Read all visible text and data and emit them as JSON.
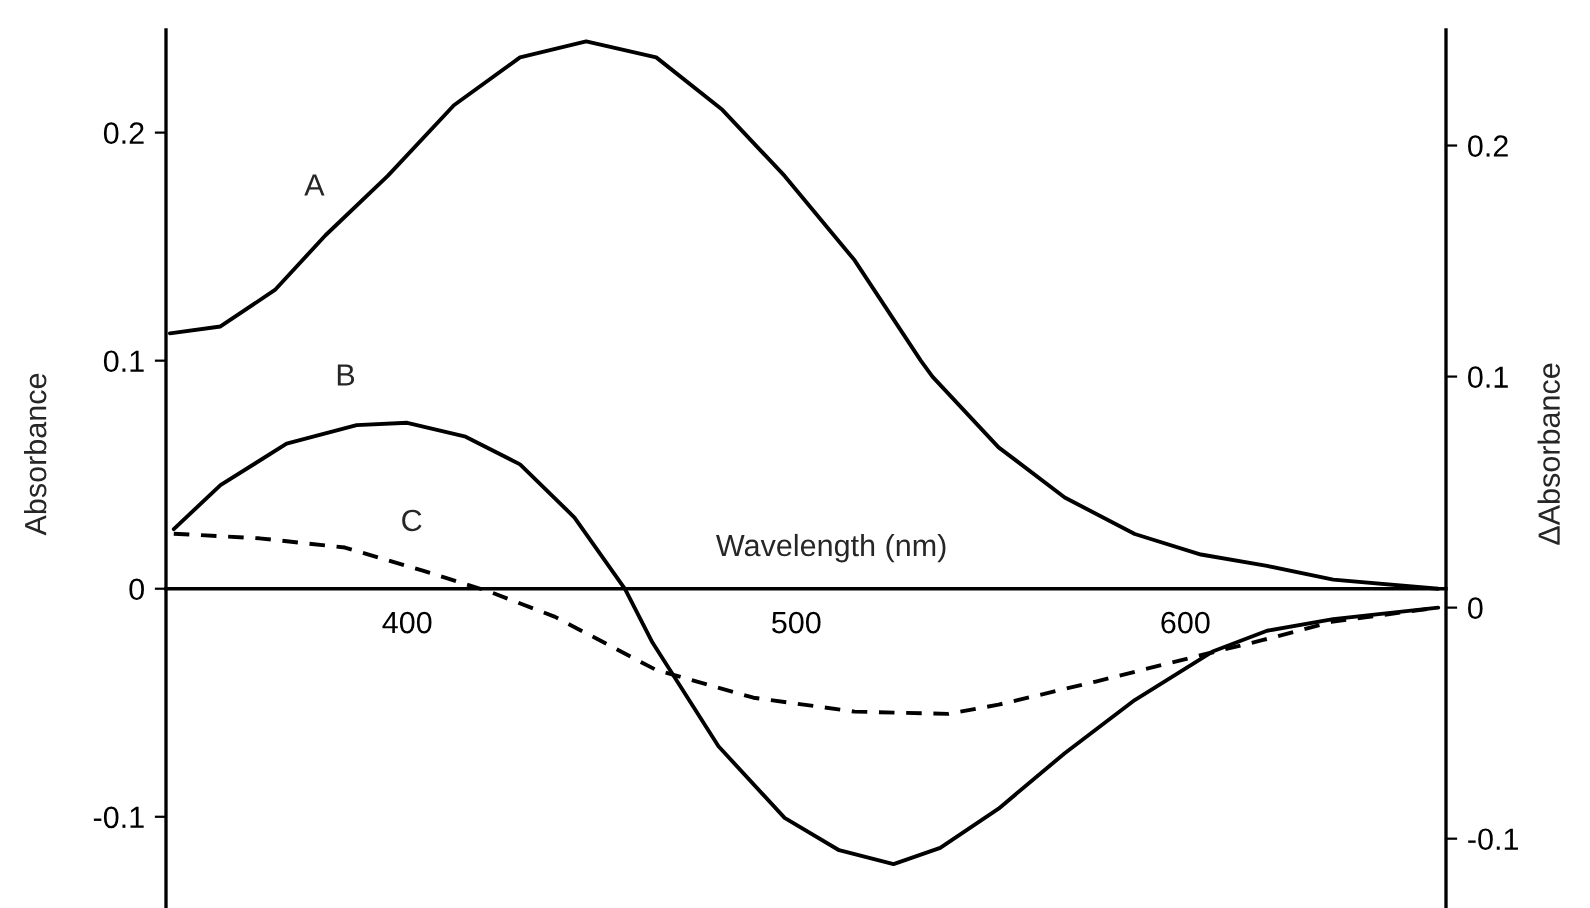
{
  "chart_data": {
    "type": "line",
    "xlabel": "Wavelength (nm)",
    "ylabel": "Absorbance",
    "y2label": "ΔAbsorbance",
    "xlim": [
      338,
      667
    ],
    "xticks": [
      400,
      500,
      600
    ],
    "ylim": [
      -0.14,
      0.245
    ],
    "yticks": [
      -0.1,
      0,
      0.1,
      0.2
    ],
    "y2lim": [
      -0.13,
      0.25
    ],
    "y2ticks": [
      -0.1,
      0,
      0.1,
      0.2
    ],
    "grid": false,
    "legend": false,
    "marker": "none",
    "series": [
      {
        "name": "A",
        "color": "#000000",
        "line_style": "solid",
        "x": [
          339,
          352,
          366,
          379,
          395,
          412,
          429,
          446,
          464,
          481,
          497,
          515,
          532,
          535,
          552,
          569,
          587,
          604,
          621,
          638,
          665
        ],
        "values": [
          0.112,
          0.115,
          0.131,
          0.155,
          0.181,
          0.212,
          0.233,
          0.24,
          0.233,
          0.21,
          0.181,
          0.144,
          0.1,
          0.093,
          0.062,
          0.04,
          0.024,
          0.015,
          0.01,
          0.004,
          0
        ]
      },
      {
        "name": "B",
        "color": "#000000",
        "line_style": "solid",
        "axis": "y2",
        "x": [
          340,
          352,
          369,
          387,
          400,
          415,
          429,
          443,
          456,
          463,
          480,
          497,
          511,
          525,
          537,
          552,
          569,
          587,
          607,
          621,
          638,
          665
        ],
        "values": [
          0.034,
          0.053,
          0.071,
          0.079,
          0.08,
          0.074,
          0.062,
          0.039,
          0.008,
          -0.015,
          -0.06,
          -0.091,
          -0.105,
          -0.111,
          -0.104,
          -0.087,
          -0.063,
          -0.04,
          -0.019,
          -0.01,
          -0.005,
          0
        ]
      },
      {
        "name": "C",
        "color": "#000000",
        "line_style": "dashed",
        "axis": "y2",
        "x": [
          340,
          362,
          384,
          404,
          421,
          438,
          464,
          489,
          515,
          539,
          552,
          577,
          603,
          620,
          638,
          665
        ],
        "values": [
          0.032,
          0.03,
          0.026,
          0.016,
          0.007,
          -0.004,
          -0.027,
          -0.039,
          -0.045,
          -0.046,
          -0.042,
          -0.032,
          -0.021,
          -0.014,
          -0.006,
          0
        ]
      }
    ]
  }
}
